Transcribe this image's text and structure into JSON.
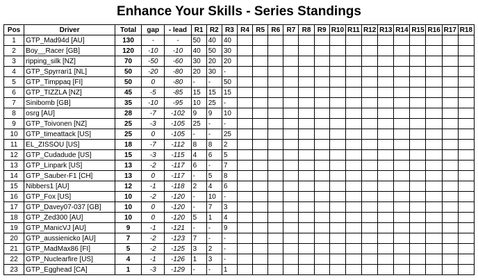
{
  "title": "Enhance Your Skills - Series Standings",
  "headers": {
    "pos": "Pos",
    "driver": "Driver",
    "total": "Total",
    "gap": "gap",
    "lead": "- lead",
    "rounds": [
      "R1",
      "R2",
      "R3",
      "R4",
      "R5",
      "R6",
      "R7",
      "R8",
      "R9",
      "R10",
      "R11",
      "R12",
      "R13",
      "R14",
      "R15",
      "R16",
      "R17",
      "R18"
    ]
  },
  "rows": [
    {
      "pos": "1",
      "driver": "GTP_Mad94d [AU]",
      "total": "130",
      "gap": "-",
      "lead": "-",
      "r": [
        "50",
        "40",
        "40"
      ]
    },
    {
      "pos": "2",
      "driver": "Boy__Racer [GB]",
      "total": "120",
      "gap": "-10",
      "lead": "-10",
      "r": [
        "40",
        "50",
        "30"
      ]
    },
    {
      "pos": "3",
      "driver": "ripping_silk [NZ]",
      "total": "70",
      "gap": "-50",
      "lead": "-60",
      "r": [
        "30",
        "20",
        "20"
      ]
    },
    {
      "pos": "4",
      "driver": "GTP_Spyrrari1 [NL]",
      "total": "50",
      "gap": "-20",
      "lead": "-80",
      "r": [
        "20",
        "30",
        "-"
      ]
    },
    {
      "pos": "5",
      "driver": "GTP_Timppaq [FI]",
      "total": "50",
      "gap": "0",
      "lead": "-80",
      "r": [
        "-",
        "-",
        "50"
      ]
    },
    {
      "pos": "6",
      "driver": "GTP_TIZZLA [NZ]",
      "total": "45",
      "gap": "-5",
      "lead": "-85",
      "r": [
        "15",
        "15",
        "15"
      ]
    },
    {
      "pos": "7",
      "driver": "Sinibomb [GB]",
      "total": "35",
      "gap": "-10",
      "lead": "-95",
      "r": [
        "10",
        "25",
        "-"
      ]
    },
    {
      "pos": "8",
      "driver": "osrg [AU]",
      "total": "28",
      "gap": "-7",
      "lead": "-102",
      "r": [
        "9",
        "9",
        "10"
      ]
    },
    {
      "pos": "9",
      "driver": "GTP_Toivonen [NZ]",
      "total": "25",
      "gap": "-3",
      "lead": "-105",
      "r": [
        "25",
        "-",
        "-"
      ]
    },
    {
      "pos": "10",
      "driver": "GTP_timeattack [US]",
      "total": "25",
      "gap": "0",
      "lead": "-105",
      "r": [
        "-",
        "-",
        "25"
      ]
    },
    {
      "pos": "11",
      "driver": "EL_ZISSOU [US]",
      "total": "18",
      "gap": "-7",
      "lead": "-112",
      "r": [
        "8",
        "8",
        "2"
      ]
    },
    {
      "pos": "12",
      "driver": "GTP_Cudadude [US]",
      "total": "15",
      "gap": "-3",
      "lead": "-115",
      "r": [
        "4",
        "6",
        "5"
      ]
    },
    {
      "pos": "13",
      "driver": "GTP_Linpark [US]",
      "total": "13",
      "gap": "-2",
      "lead": "-117",
      "r": [
        "6",
        "-",
        "7"
      ]
    },
    {
      "pos": "14",
      "driver": "GTP_Sauber-F1 [CH]",
      "total": "13",
      "gap": "0",
      "lead": "-117",
      "r": [
        "-",
        "5",
        "8"
      ]
    },
    {
      "pos": "15",
      "driver": "Nibbers1 [AU]",
      "total": "12",
      "gap": "-1",
      "lead": "-118",
      "r": [
        "2",
        "4",
        "6"
      ]
    },
    {
      "pos": "16",
      "driver": "GTP_Fox [US]",
      "total": "10",
      "gap": "-2",
      "lead": "-120",
      "r": [
        "-",
        "10",
        "-"
      ]
    },
    {
      "pos": "17",
      "driver": "GTP_Davey07-037 [GB]",
      "total": "10",
      "gap": "0",
      "lead": "-120",
      "r": [
        "-",
        "7",
        "3"
      ]
    },
    {
      "pos": "18",
      "driver": "GTP_Zed300 [AU]",
      "total": "10",
      "gap": "0",
      "lead": "-120",
      "r": [
        "5",
        "1",
        "4"
      ]
    },
    {
      "pos": "19",
      "driver": "GTP_ManicVJ [AU]",
      "total": "9",
      "gap": "-1",
      "lead": "-121",
      "r": [
        "-",
        "-",
        "9"
      ]
    },
    {
      "pos": "20",
      "driver": "GTP_aussienicko [AU]",
      "total": "7",
      "gap": "-2",
      "lead": "-123",
      "r": [
        "7",
        "-",
        "-"
      ]
    },
    {
      "pos": "21",
      "driver": "GTP_MadMax86 [FI]",
      "total": "5",
      "gap": "-2",
      "lead": "-125",
      "r": [
        "3",
        "2",
        "-"
      ]
    },
    {
      "pos": "22",
      "driver": "GTP_Nuclearfire [US]",
      "total": "4",
      "gap": "-1",
      "lead": "-126",
      "r": [
        "1",
        "3",
        "-"
      ]
    },
    {
      "pos": "23",
      "driver": "GTP_Egghead [CA]",
      "total": "1",
      "gap": "-3",
      "lead": "-129",
      "r": [
        "-",
        "-",
        "1"
      ]
    }
  ]
}
